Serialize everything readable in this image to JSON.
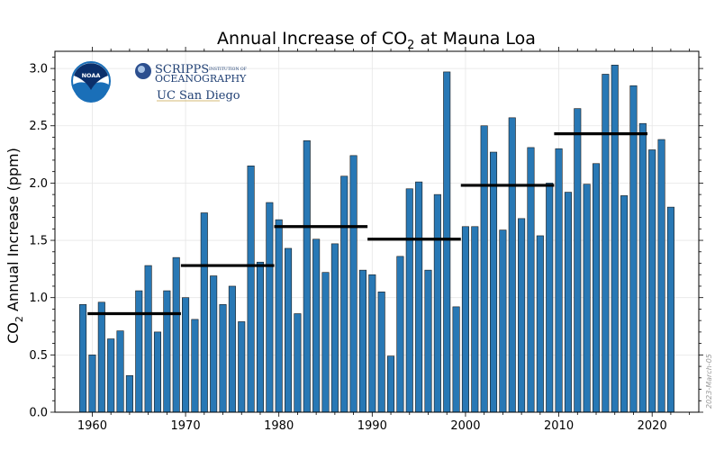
{
  "chart_data": {
    "type": "bar",
    "title_main": "Annual Increase of CO",
    "title_sub": "2",
    "title_tail": " at Mauna Loa",
    "ylabel_main": "CO",
    "ylabel_sub": "2",
    "ylabel_tail": " Annual Increase (ppm)",
    "xlim": [
      1956,
      2025
    ],
    "ylim": [
      0,
      3.15
    ],
    "x_ticks": [
      1960,
      1970,
      1980,
      1990,
      2000,
      2010,
      2020
    ],
    "y_ticks": [
      0.0,
      0.5,
      1.0,
      1.5,
      2.0,
      2.5,
      3.0
    ],
    "y_tick_labels": [
      "0.0",
      "0.5",
      "1.0",
      "1.5",
      "2.0",
      "2.5",
      "3.0"
    ],
    "grid": true,
    "bar_color": "#2878b5",
    "bar_edge_color": "#1a1a1a",
    "mean_line_color": "#000000",
    "years": [
      1959,
      1960,
      1961,
      1962,
      1963,
      1964,
      1965,
      1966,
      1967,
      1968,
      1969,
      1970,
      1971,
      1972,
      1973,
      1974,
      1975,
      1976,
      1977,
      1978,
      1979,
      1980,
      1981,
      1982,
      1983,
      1984,
      1985,
      1986,
      1987,
      1988,
      1989,
      1990,
      1991,
      1992,
      1993,
      1994,
      1995,
      1996,
      1997,
      1998,
      1999,
      2000,
      2001,
      2002,
      2003,
      2004,
      2005,
      2006,
      2007,
      2008,
      2009,
      2010,
      2011,
      2012,
      2013,
      2014,
      2015,
      2016,
      2017,
      2018,
      2019,
      2020,
      2021,
      2022
    ],
    "values": [
      0.94,
      0.5,
      0.96,
      0.64,
      0.71,
      0.32,
      1.06,
      1.28,
      0.7,
      1.06,
      1.35,
      1.0,
      0.81,
      1.74,
      1.19,
      0.94,
      1.1,
      0.79,
      2.15,
      1.31,
      1.83,
      1.68,
      1.43,
      0.86,
      2.37,
      1.51,
      1.22,
      1.47,
      2.06,
      2.24,
      1.24,
      1.2,
      1.05,
      0.49,
      1.36,
      1.95,
      2.01,
      1.24,
      1.9,
      2.97,
      0.92,
      1.62,
      1.62,
      2.5,
      2.27,
      1.59,
      2.57,
      1.69,
      2.31,
      1.54,
      2.0,
      2.3,
      1.92,
      2.65,
      1.99,
      2.17,
      2.95,
      3.03,
      1.89,
      2.85,
      2.52,
      2.29,
      2.38,
      1.79
    ],
    "decadal_means": [
      {
        "start": 1960,
        "end": 1970,
        "value": 0.86
      },
      {
        "start": 1970,
        "end": 1980,
        "value": 1.28
      },
      {
        "start": 1980,
        "end": 1990,
        "value": 1.62
      },
      {
        "start": 1990,
        "end": 2000,
        "value": 1.51
      },
      {
        "start": 2000,
        "end": 2010,
        "value": 1.98
      },
      {
        "start": 2010,
        "end": 2020,
        "value": 2.43
      }
    ],
    "date_stamp": "2023-March-05"
  },
  "logos": {
    "noaa_text": "NOAA",
    "scripps_line1": "SCRIPPS",
    "scripps_small": "INSTITUTION OF",
    "scripps_line2": "OCEANOGRAPHY",
    "ucsd_text": "UC San Diego",
    "noaa_blue": "#1a6fb8",
    "noaa_dark": "#0b2f6b",
    "scripps_blue": "#1f3f73"
  }
}
